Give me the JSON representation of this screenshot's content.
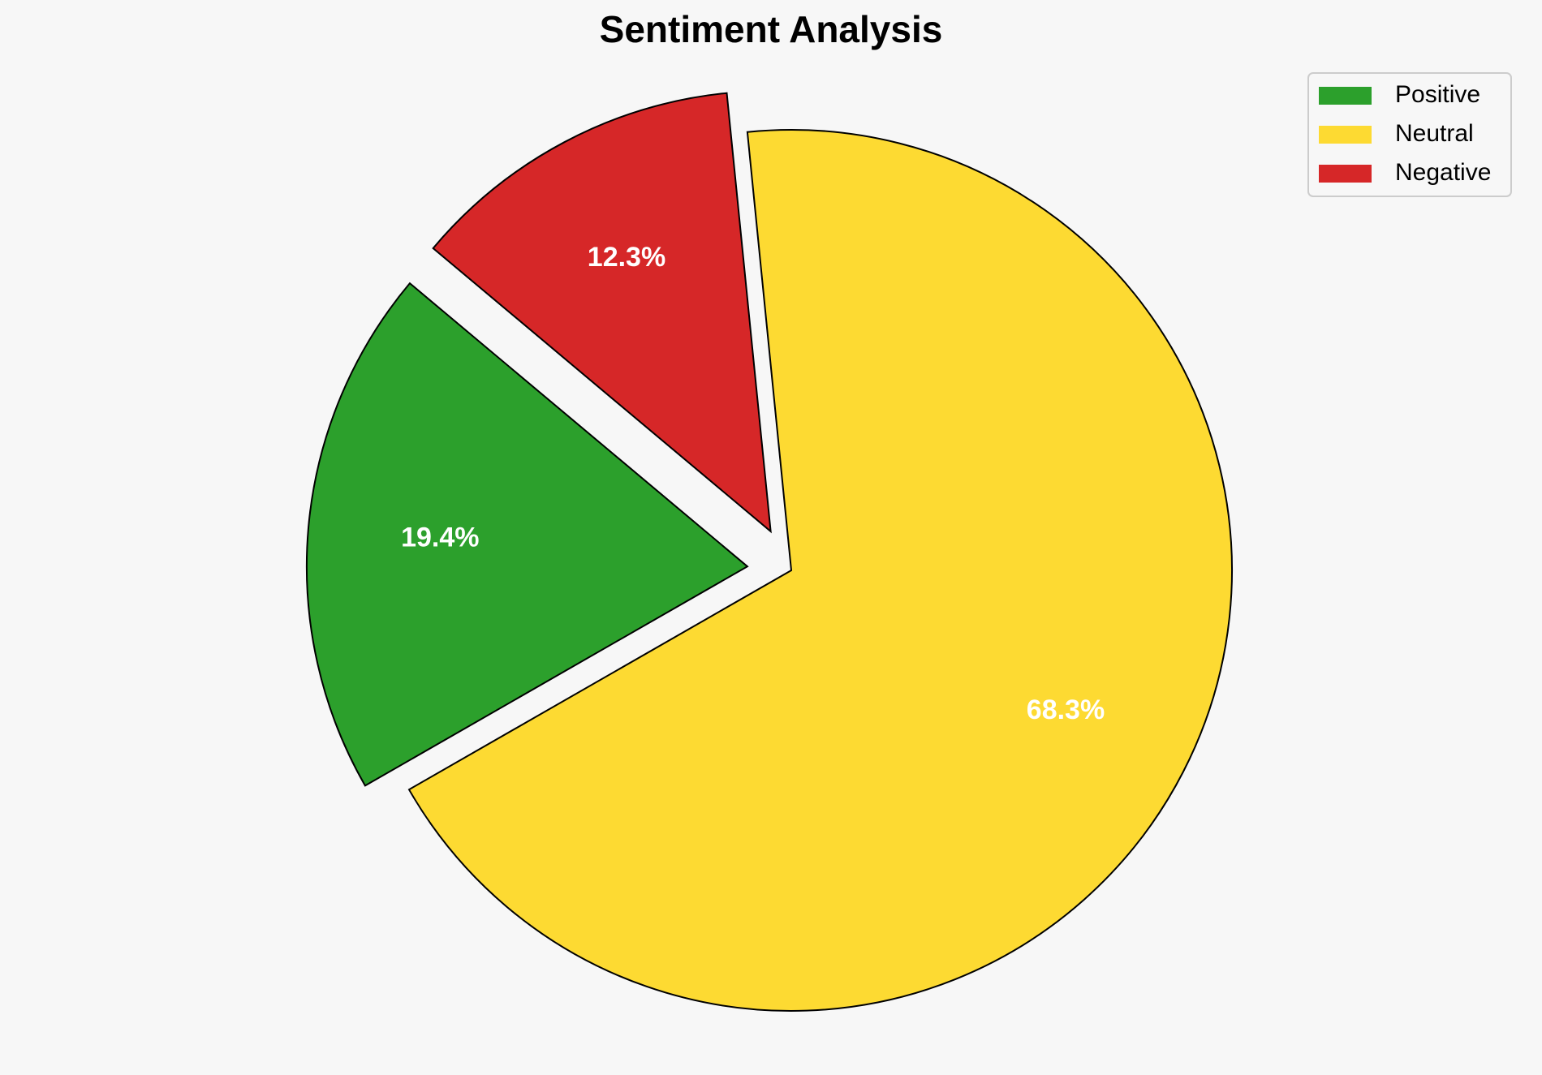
{
  "chart_data": {
    "type": "pie",
    "title": "Sentiment Analysis",
    "categories": [
      "Positive",
      "Neutral",
      "Negative"
    ],
    "values": [
      19.4,
      68.3,
      12.3
    ],
    "value_labels": [
      "19.4%",
      "68.3%",
      "12.3%"
    ],
    "colors": [
      "#2ca02c",
      "#fdda32",
      "#d62728"
    ],
    "legend": "upper right"
  }
}
